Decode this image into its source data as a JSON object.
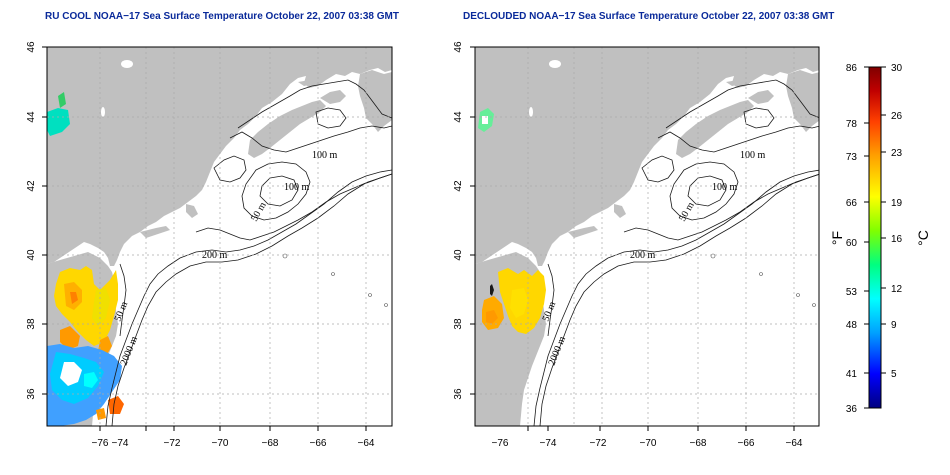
{
  "titles": {
    "left": "RU COOL NOAA−17 Sea Surface Temperature October 22, 2007 03:38 GMT",
    "right": "DECLOUDED NOAA−17 Sea Surface Temperature October 22, 2007 03:38 GMT"
  },
  "axes": {
    "lon_ticks": [
      "−76",
      "−74",
      "−72",
      "−70",
      "−68",
      "−66",
      "−64"
    ],
    "lat_ticks": [
      "36",
      "38",
      "40",
      "42",
      "44",
      "46"
    ]
  },
  "contour_labels": {
    "m100a": "100 m",
    "m100b": "100 m",
    "m50": "50 m",
    "m200": "200 m",
    "m50b": "50 m",
    "m2000": "2000 m"
  },
  "colorbar": {
    "unit_f": "°F",
    "unit_c": "°C",
    "f_labels": [
      "86",
      "78",
      "73",
      "66",
      "60",
      "53",
      "48",
      "41",
      "36"
    ],
    "c_labels": [
      "30",
      "26",
      "23",
      "19",
      "16",
      "12",
      "9",
      "5"
    ],
    "colors": [
      "#000080",
      "#0000ff",
      "#00a0ff",
      "#00ffff",
      "#00ff80",
      "#80ff00",
      "#ffff00",
      "#ffa000",
      "#ff4000",
      "#c00000",
      "#800000"
    ]
  },
  "colors": {
    "land": "#c0c0c0",
    "ocean": "#ffffff",
    "title": "#0a2a9a"
  }
}
